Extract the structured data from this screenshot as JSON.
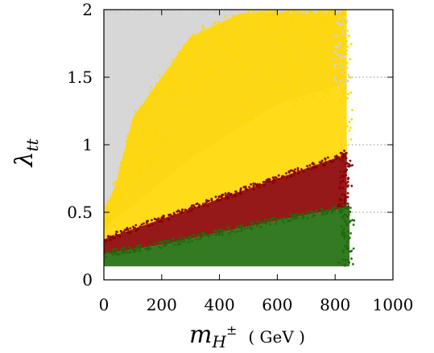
{
  "chart_data": {
    "type": "scatter",
    "title": "",
    "xlabel": {
      "main": "m",
      "sub": "H",
      "sup": "±",
      "unit": "( GeV )"
    },
    "ylabel": {
      "main": "λ",
      "sub": "tt"
    },
    "xlim": [
      0,
      1000
    ],
    "ylim": [
      0,
      2
    ],
    "x_ticks": [
      0,
      200,
      400,
      600,
      800,
      1000
    ],
    "x_tick_labels": [
      "0",
      "200",
      "400",
      "600",
      "800",
      "1000"
    ],
    "y_ticks": [
      0,
      0.5,
      1,
      1.5,
      2
    ],
    "y_tick_labels": [
      "0",
      "0.5",
      "1",
      "1.5",
      "2"
    ],
    "grid": "dotted y-grid lines to the right of the scan region",
    "legend": "none",
    "series": [
      {
        "color": "#d3d3d3",
        "region": {
          "x_range": [
            0,
            830
          ],
          "upper_edge": [
            [
              0,
              2.0
            ],
            [
              830,
              2.0
            ]
          ],
          "lower_edge": [
            [
              0,
              0.38
            ],
            [
              100,
              0.55
            ],
            [
              300,
              0.9
            ],
            [
              600,
              1.3
            ],
            [
              830,
              1.45
            ]
          ]
        }
      },
      {
        "color": "#ffd700",
        "region": {
          "x_range": [
            0,
            840
          ],
          "upper_edge": [
            [
              0,
              0.5
            ],
            [
              40,
              0.7
            ],
            [
              100,
              1.2
            ],
            [
              300,
              1.8
            ],
            [
              500,
              2.0
            ],
            [
              840,
              2.0
            ]
          ],
          "lower_edge": [
            [
              0,
              0.3
            ],
            [
              200,
              0.45
            ],
            [
              400,
              0.6
            ],
            [
              600,
              0.75
            ],
            [
              800,
              0.9
            ],
            [
              840,
              0.95
            ]
          ]
        }
      },
      {
        "color": "#8b0000",
        "region": {
          "x_range": [
            0,
            840
          ],
          "upper_edge": [
            [
              0,
              0.3
            ],
            [
              200,
              0.45
            ],
            [
              400,
              0.6
            ],
            [
              600,
              0.75
            ],
            [
              800,
              0.9
            ],
            [
              840,
              0.95
            ]
          ],
          "lower_edge": [
            [
              0,
              0.19
            ],
            [
              200,
              0.26
            ],
            [
              400,
              0.35
            ],
            [
              600,
              0.44
            ],
            [
              800,
              0.52
            ],
            [
              840,
              0.54
            ]
          ]
        }
      },
      {
        "color": "#1e6b0a",
        "region": {
          "x_range": [
            0,
            850
          ],
          "upper_edge": [
            [
              0,
              0.19
            ],
            [
              200,
              0.26
            ],
            [
              400,
              0.35
            ],
            [
              600,
              0.44
            ],
            [
              800,
              0.52
            ],
            [
              850,
              0.55
            ]
          ],
          "lower_edge": [
            [
              0,
              0.1
            ],
            [
              850,
              0.1
            ]
          ]
        }
      }
    ]
  }
}
